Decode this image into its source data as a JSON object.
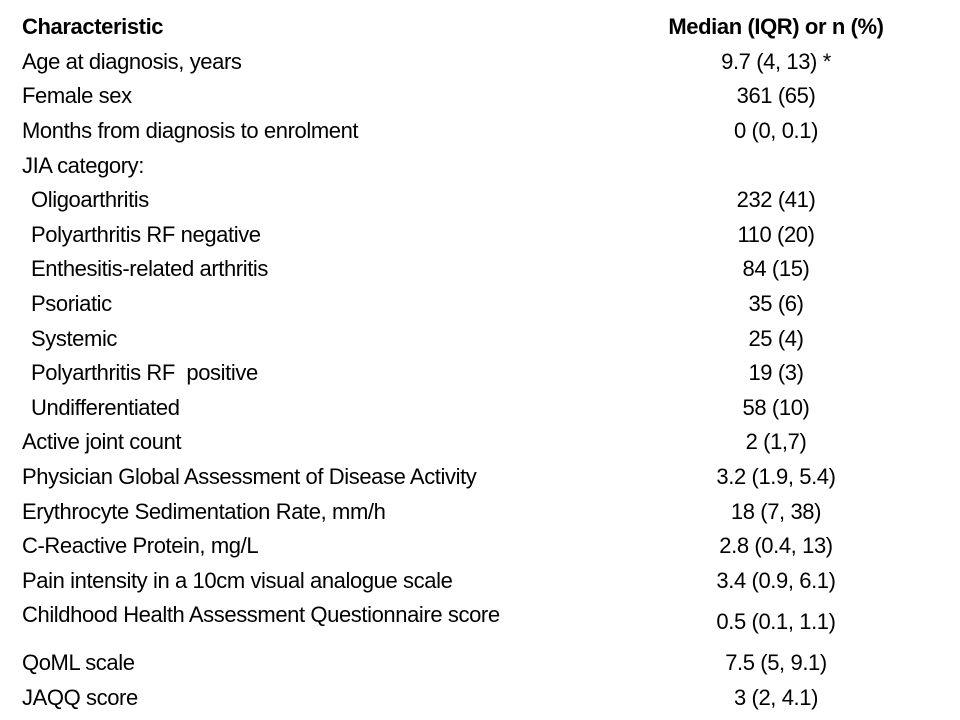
{
  "table": {
    "header": {
      "characteristic": "Characteristic",
      "value": "Median (IQR) or n (%)"
    },
    "rows": [
      {
        "label": "Age at diagnosis, years",
        "value": "9.7 (4, 13) *"
      },
      {
        "label": "Female sex",
        "value": "361 (65)"
      },
      {
        "label": "Months from diagnosis to enrolment",
        "value": "0 (0, 0.1)"
      },
      {
        "label": "JIA category:",
        "value": ""
      },
      {
        "label": "Oligoarthritis",
        "value": "232 (41)"
      },
      {
        "label": "Polyarthritis RF negative",
        "value": "110 (20)"
      },
      {
        "label": "Enthesitis-related arthritis",
        "value": "84 (15)"
      },
      {
        "label": "Psoriatic",
        "value": "35 (6)"
      },
      {
        "label": "Systemic",
        "value": "25 (4)"
      },
      {
        "label": "Polyarthritis RF  positive",
        "value": "19 (3)"
      },
      {
        "label": "Undifferentiated",
        "value": "58 (10)"
      },
      {
        "label": "Active joint count",
        "value": "2 (1,7)"
      },
      {
        "label": "Physician Global Assessment of Disease Activity",
        "value": "3.2 (1.9, 5.4)"
      },
      {
        "label": "Erythrocyte Sedimentation Rate, mm/h",
        "value": "18 (7, 38)"
      },
      {
        "label": "C-Reactive Protein, mg/L",
        "value": "2.8 (0.4, 13)"
      },
      {
        "label": "Pain intensity in a 10cm visual analogue scale",
        "value": "3.4 (0.9, 6.1)"
      },
      {
        "label": "Childhood Health Assessment Questionnaire score",
        "value": "0.5 (0.1, 1.1)"
      },
      {
        "label": "QoML scale",
        "value": "7.5 (5, 9.1)"
      },
      {
        "label": "JAQQ score",
        "value": "3 (2, 4.1)"
      }
    ]
  }
}
